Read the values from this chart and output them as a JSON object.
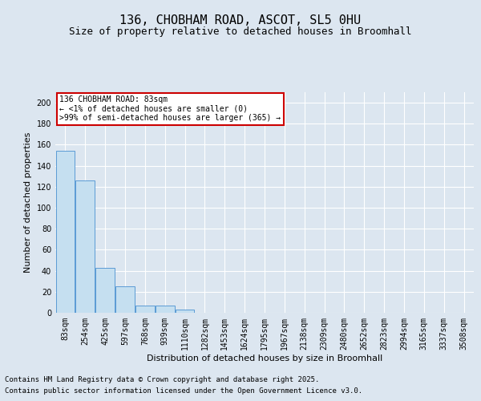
{
  "title": "136, CHOBHAM ROAD, ASCOT, SL5 0HU",
  "subtitle": "Size of property relative to detached houses in Broomhall",
  "xlabel": "Distribution of detached houses by size in Broomhall",
  "ylabel": "Number of detached properties",
  "bar_labels": [
    "83sqm",
    "254sqm",
    "425sqm",
    "597sqm",
    "768sqm",
    "939sqm",
    "1110sqm",
    "1282sqm",
    "1453sqm",
    "1624sqm",
    "1795sqm",
    "1967sqm",
    "2138sqm",
    "2309sqm",
    "2480sqm",
    "2652sqm",
    "2823sqm",
    "2994sqm",
    "3165sqm",
    "3337sqm",
    "3508sqm"
  ],
  "bar_values": [
    154,
    126,
    43,
    25,
    7,
    7,
    3,
    0,
    0,
    0,
    0,
    0,
    0,
    0,
    0,
    0,
    0,
    0,
    0,
    0,
    0
  ],
  "bar_color": "#c5dff0",
  "bar_edge_color": "#5b9bd5",
  "annotation_line1": "136 CHOBHAM ROAD: 83sqm",
  "annotation_line2": "← <1% of detached houses are smaller (0)",
  "annotation_line3": ">99% of semi-detached houses are larger (365) →",
  "annotation_box_facecolor": "#ffffff",
  "annotation_box_edgecolor": "#cc0000",
  "background_color": "#dce6f0",
  "plot_bg_color": "#dce6f0",
  "ylim": [
    0,
    210
  ],
  "yticks": [
    0,
    20,
    40,
    60,
    80,
    100,
    120,
    140,
    160,
    180,
    200
  ],
  "footer_line1": "Contains HM Land Registry data © Crown copyright and database right 2025.",
  "footer_line2": "Contains public sector information licensed under the Open Government Licence v3.0.",
  "title_fontsize": 11,
  "subtitle_fontsize": 9,
  "ylabel_fontsize": 8,
  "xlabel_fontsize": 8,
  "tick_fontsize": 7,
  "annotation_fontsize": 7,
  "footer_fontsize": 6.5
}
